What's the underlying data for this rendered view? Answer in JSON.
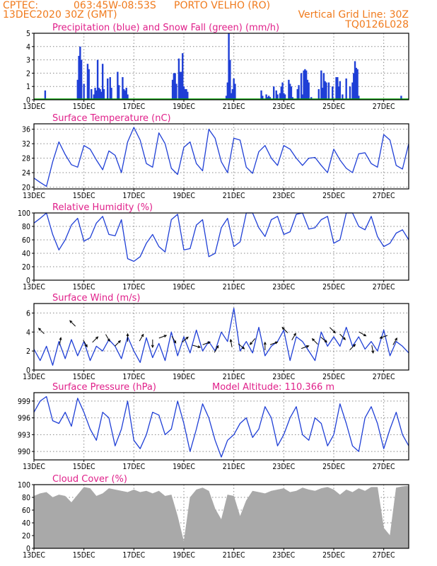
{
  "header": {
    "org": "CPTEC:",
    "coords": "063:45W-08:53S",
    "location": "PORTO VELHO (RO)",
    "datetime": "13DEC2020 30Z (GMT)",
    "grid_note": "Vertical Grid Line: 30Z",
    "model": "TQ0126L028"
  },
  "colors": {
    "header": "#f07a1c",
    "panel_title": "#e0208a",
    "line": "#1f3fd6",
    "precip": "#1f3fd6",
    "snow": "#00a000",
    "cloud": "#a9a9a9",
    "arrow": "#000000"
  },
  "x_axis": {
    "ticks": [
      "13DEC",
      "15DEC",
      "17DEC",
      "19DEC",
      "21DEC",
      "23DEC",
      "25DEC",
      "27DEC"
    ],
    "tick_days": [
      0,
      2,
      4,
      6,
      8,
      10,
      12,
      14
    ],
    "range_days": [
      0,
      15
    ]
  },
  "chart_data": [
    {
      "type": "bar",
      "title": "Precipitation (blue) and Snow Fall (green) (mm/h)",
      "ylim": [
        0,
        5
      ],
      "yticks": [
        "0",
        "1",
        "2",
        "3",
        "4",
        "5"
      ],
      "grid": true,
      "series": [
        {
          "name": "Precipitation",
          "color": "#1f3fd6",
          "points": [
            [
              0.45,
              0.7
            ],
            [
              1.75,
              1.5
            ],
            [
              1.8,
              3.3
            ],
            [
              1.85,
              4.0
            ],
            [
              1.9,
              3.0
            ],
            [
              2.0,
              1.2
            ],
            [
              2.15,
              2.7
            ],
            [
              2.2,
              2.3
            ],
            [
              2.3,
              0.8
            ],
            [
              2.4,
              0.4
            ],
            [
              2.45,
              0.9
            ],
            [
              2.5,
              0.7
            ],
            [
              2.55,
              3.0
            ],
            [
              2.6,
              0.9
            ],
            [
              2.65,
              0.8
            ],
            [
              2.7,
              0.6
            ],
            [
              2.75,
              2.7
            ],
            [
              2.8,
              0.8
            ],
            [
              2.95,
              1.6
            ],
            [
              3.05,
              1.7
            ],
            [
              3.1,
              0.9
            ],
            [
              3.35,
              2.1
            ],
            [
              3.4,
              1.1
            ],
            [
              3.55,
              1.7
            ],
            [
              3.6,
              0.8
            ],
            [
              3.65,
              0.7
            ],
            [
              3.7,
              0.9
            ],
            [
              3.75,
              0.4
            ],
            [
              5.55,
              1.5
            ],
            [
              5.6,
              2.0
            ],
            [
              5.65,
              2.0
            ],
            [
              5.7,
              1.2
            ],
            [
              5.8,
              3.1
            ],
            [
              5.85,
              2.1
            ],
            [
              5.9,
              2.1
            ],
            [
              5.95,
              3.5
            ],
            [
              6.0,
              1.0
            ],
            [
              6.05,
              0.8
            ],
            [
              6.1,
              0.8
            ],
            [
              6.15,
              0.6
            ],
            [
              7.7,
              0.3
            ],
            [
              7.75,
              1.3
            ],
            [
              7.8,
              5.0
            ],
            [
              7.85,
              3.0
            ],
            [
              7.9,
              0.5
            ],
            [
              7.95,
              0.8
            ],
            [
              8.0,
              1.6
            ],
            [
              8.05,
              1.2
            ],
            [
              9.1,
              0.7
            ],
            [
              9.15,
              0.3
            ],
            [
              9.3,
              0.4
            ],
            [
              9.35,
              0.2
            ],
            [
              9.4,
              0.3
            ],
            [
              9.45,
              0.2
            ],
            [
              9.6,
              1.0
            ],
            [
              9.7,
              0.7
            ],
            [
              9.75,
              0.4
            ],
            [
              9.85,
              0.5
            ],
            [
              9.9,
              1.0
            ],
            [
              9.95,
              1.3
            ],
            [
              10.0,
              0.5
            ],
            [
              10.05,
              0.4
            ],
            [
              10.2,
              1.5
            ],
            [
              10.25,
              1.2
            ],
            [
              10.3,
              1.0
            ],
            [
              10.35,
              0.2
            ],
            [
              10.55,
              0.8
            ],
            [
              10.6,
              1.1
            ],
            [
              10.7,
              2.0
            ],
            [
              10.75,
              0.4
            ],
            [
              10.8,
              2.2
            ],
            [
              10.85,
              2.3
            ],
            [
              10.9,
              2.2
            ],
            [
              10.95,
              1.5
            ],
            [
              11.0,
              1.3
            ],
            [
              11.1,
              0.2
            ],
            [
              11.4,
              0.8
            ],
            [
              11.5,
              2.2
            ],
            [
              11.55,
              0.9
            ],
            [
              11.6,
              2.0
            ],
            [
              11.65,
              1.4
            ],
            [
              11.7,
              1.3
            ],
            [
              11.8,
              1.3
            ],
            [
              11.95,
              1.0
            ],
            [
              12.1,
              1.7
            ],
            [
              12.15,
              1.7
            ],
            [
              12.2,
              1.0
            ],
            [
              12.25,
              1.4
            ],
            [
              12.35,
              0.4
            ],
            [
              12.5,
              1.6
            ],
            [
              12.65,
              1.0
            ],
            [
              12.75,
              1.3
            ],
            [
              12.8,
              2.0
            ],
            [
              12.85,
              2.9
            ],
            [
              12.9,
              2.4
            ],
            [
              12.95,
              2.3
            ],
            [
              13.0,
              0.3
            ],
            [
              14.7,
              0.3
            ]
          ]
        },
        {
          "name": "Snow Fall",
          "color": "#00a000",
          "points": []
        }
      ]
    },
    {
      "type": "line",
      "title": "Surface Temperature (nC)",
      "ylim": [
        19.5,
        37.5
      ],
      "yticks": [
        "20",
        "24",
        "28",
        "32",
        "36"
      ],
      "ytick_values": [
        20,
        24,
        28,
        32,
        36
      ],
      "grid": true,
      "x": [
        0,
        0.25,
        0.5,
        0.75,
        1,
        1.25,
        1.5,
        1.75,
        2,
        2.25,
        2.5,
        2.75,
        3,
        3.25,
        3.5,
        3.75,
        4,
        4.25,
        4.5,
        4.75,
        5,
        5.25,
        5.5,
        5.75,
        6,
        6.25,
        6.5,
        6.75,
        7,
        7.25,
        7.5,
        7.75,
        8,
        8.25,
        8.5,
        8.75,
        9,
        9.25,
        9.5,
        9.75,
        10,
        10.25,
        10.5,
        10.75,
        11,
        11.25,
        11.5,
        11.75,
        12,
        12.25,
        12.5,
        12.75,
        13,
        13.25,
        13.5,
        13.75,
        14,
        14.25,
        14.5,
        14.75,
        15
      ],
      "values": [
        22.5,
        21.3,
        20.2,
        27.0,
        32.5,
        29.0,
        26.2,
        25.5,
        31.5,
        30.5,
        27.5,
        24.8,
        30.0,
        28.8,
        24.0,
        32.5,
        36.5,
        33.0,
        26.5,
        25.5,
        35.0,
        32.0,
        25.2,
        23.5,
        31.0,
        32.5,
        26.5,
        24.5,
        36.0,
        33.5,
        27.0,
        24.0,
        33.5,
        33.0,
        25.5,
        23.8,
        29.8,
        31.5,
        28.0,
        26.0,
        31.5,
        30.5,
        28.0,
        26.0,
        28.0,
        28.2,
        26.0,
        24.0,
        30.5,
        27.5,
        25.2,
        24.0,
        29.2,
        29.5,
        26.5,
        25.5,
        34.5,
        33.0,
        26.0,
        25.0,
        32.0
      ]
    },
    {
      "type": "line",
      "title": "Relative Humidity (%)",
      "ylim": [
        0,
        100
      ],
      "yticks": [
        "0",
        "20",
        "40",
        "60",
        "80",
        "100"
      ],
      "ytick_values": [
        0,
        20,
        40,
        60,
        80,
        100
      ],
      "grid": true,
      "x": [
        0,
        0.25,
        0.5,
        0.75,
        1,
        1.25,
        1.5,
        1.75,
        2,
        2.25,
        2.5,
        2.75,
        3,
        3.25,
        3.5,
        3.75,
        4,
        4.25,
        4.5,
        4.75,
        5,
        5.25,
        5.5,
        5.75,
        6,
        6.25,
        6.5,
        6.75,
        7,
        7.25,
        7.5,
        7.75,
        8,
        8.25,
        8.5,
        8.75,
        9,
        9.25,
        9.5,
        9.75,
        10,
        10.25,
        10.5,
        10.75,
        11,
        11.25,
        11.5,
        11.75,
        12,
        12.25,
        12.5,
        12.75,
        13,
        13.25,
        13.5,
        13.75,
        14,
        14.25,
        14.5,
        14.75,
        15
      ],
      "values": [
        85,
        92,
        100,
        68,
        45,
        60,
        82,
        92,
        58,
        63,
        85,
        95,
        68,
        66,
        90,
        32,
        28,
        35,
        55,
        68,
        50,
        42,
        90,
        98,
        45,
        47,
        82,
        90,
        35,
        40,
        78,
        92,
        50,
        57,
        100,
        100,
        78,
        65,
        90,
        95,
        68,
        72,
        98,
        100,
        76,
        78,
        90,
        95,
        55,
        60,
        100,
        100,
        80,
        75,
        95,
        65,
        50,
        55,
        70,
        75,
        60
      ]
    },
    {
      "type": "line",
      "title": "Surface Wind (m/s)",
      "ylim": [
        0,
        7
      ],
      "yticks": [
        "0",
        "2",
        "4",
        "6"
      ],
      "ytick_values": [
        0,
        2,
        4,
        6
      ],
      "grid": true,
      "x": [
        0,
        0.25,
        0.5,
        0.75,
        1,
        1.25,
        1.5,
        1.75,
        2,
        2.25,
        2.5,
        2.75,
        3,
        3.25,
        3.5,
        3.75,
        4,
        4.25,
        4.5,
        4.75,
        5,
        5.25,
        5.5,
        5.75,
        6,
        6.25,
        6.5,
        6.75,
        7,
        7.25,
        7.5,
        7.75,
        8,
        8.25,
        8.5,
        8.75,
        9,
        9.25,
        9.5,
        9.75,
        10,
        10.25,
        10.5,
        10.75,
        11,
        11.25,
        11.5,
        11.75,
        12,
        12.25,
        12.5,
        12.75,
        13,
        13.25,
        13.5,
        13.75,
        14,
        14.25,
        14.5,
        14.75,
        15
      ],
      "values": [
        2.2,
        1.0,
        2.5,
        0.5,
        3.0,
        1.2,
        3.2,
        1.5,
        3.0,
        1.0,
        2.5,
        2.0,
        3.2,
        2.5,
        1.2,
        3.5,
        2.0,
        0.8,
        3.4,
        1.3,
        2.8,
        1.0,
        4.0,
        1.5,
        3.5,
        1.8,
        4.2,
        2.0,
        3.0,
        2.0,
        4.0,
        3.0,
        6.5,
        2.0,
        3.0,
        1.8,
        4.5,
        1.5,
        2.5,
        3.0,
        4.2,
        1.0,
        3.5,
        3.0,
        2.0,
        1.0,
        4.0,
        2.5,
        3.5,
        2.5,
        4.5,
        2.5,
        3.5,
        2.2,
        3.0,
        2.0,
        4.2,
        1.5,
        3.0,
        2.5,
        1.8
      ],
      "arrows_x": [
        0.3,
        1.05,
        1.55,
        2.05,
        2.45,
        2.95,
        3.35,
        3.75,
        4.3,
        4.75,
        5.15,
        5.6,
        6.05,
        6.5,
        6.9,
        7.3,
        7.9,
        8.3,
        8.75,
        9.25,
        9.6,
        10.05,
        10.4,
        10.85,
        11.25,
        11.6,
        11.95,
        12.35,
        12.75,
        13.15,
        13.55,
        14.0,
        14.45
      ],
      "arrows_y": [
        4.1,
        3.0,
        4.9,
        2.8,
        3.2,
        3.4,
        2.8,
        3.4,
        3.4,
        2.8,
        3.5,
        3.2,
        3.2,
        2.5,
        2.8,
        2.2,
        2.8,
        2.5,
        3.0,
        2.5,
        2.8,
        4.2,
        3.5,
        2.4,
        3.0,
        3.2,
        4.2,
        3.5,
        2.4,
        3.8,
        2.2,
        3.5,
        3.0
      ],
      "arrows_dir": [
        135,
        80,
        135,
        300,
        45,
        300,
        45,
        90,
        60,
        270,
        20,
        300,
        40,
        345,
        20,
        60,
        100,
        320,
        230,
        90,
        20,
        135,
        60,
        20,
        135,
        320,
        315,
        315,
        45,
        330,
        280,
        200,
        60
      ]
    },
    {
      "type": "line",
      "title": "Surface Pressure (hPa)",
      "annotation": "Model Altitude: 110.366 m",
      "ylim": [
        988.5,
        1000.5
      ],
      "yticks": [
        "990",
        "993",
        "996",
        "999"
      ],
      "ytick_values": [
        990,
        993,
        996,
        999
      ],
      "grid": true,
      "x": [
        0,
        0.25,
        0.5,
        0.75,
        1,
        1.25,
        1.5,
        1.75,
        2,
        2.25,
        2.5,
        2.75,
        3,
        3.25,
        3.5,
        3.75,
        4,
        4.25,
        4.5,
        4.75,
        5,
        5.25,
        5.5,
        5.75,
        6,
        6.25,
        6.5,
        6.75,
        7,
        7.25,
        7.5,
        7.75,
        8,
        8.25,
        8.5,
        8.75,
        9,
        9.25,
        9.5,
        9.75,
        10,
        10.25,
        10.5,
        10.75,
        11,
        11.25,
        11.5,
        11.75,
        12,
        12.25,
        12.5,
        12.75,
        13,
        13.25,
        13.5,
        13.75,
        14,
        14.25,
        14.5,
        14.75,
        15
      ],
      "values": [
        997,
        999.0,
        999.8,
        995.5,
        995,
        997,
        994.5,
        999.5,
        997,
        994,
        992,
        997,
        996,
        991,
        994,
        999,
        992,
        990.5,
        993,
        997,
        996.5,
        993,
        994,
        999,
        995,
        990,
        994,
        998.5,
        996,
        992,
        989,
        992,
        993,
        995,
        996,
        992.5,
        994,
        998,
        996,
        991,
        993,
        996,
        998,
        993,
        992,
        996,
        995,
        991,
        993,
        998.5,
        995,
        991,
        990,
        996,
        998,
        995,
        990.5,
        994,
        997,
        993,
        991
      ]
    },
    {
      "type": "area",
      "title": "Cloud Cover (%)",
      "ylim": [
        0,
        100
      ],
      "yticks": [
        "0",
        "20",
        "40",
        "60",
        "80",
        "100"
      ],
      "ytick_values": [
        0,
        20,
        40,
        60,
        80,
        100
      ],
      "grid": true,
      "x": [
        0,
        0.25,
        0.5,
        0.75,
        1,
        1.25,
        1.5,
        1.75,
        2,
        2.25,
        2.5,
        2.75,
        3,
        3.25,
        3.5,
        3.75,
        4,
        4.25,
        4.5,
        4.75,
        5,
        5.25,
        5.5,
        5.75,
        6,
        6.25,
        6.5,
        6.75,
        7,
        7.25,
        7.5,
        7.75,
        8,
        8.25,
        8.5,
        8.75,
        9,
        9.25,
        9.5,
        9.75,
        10,
        10.25,
        10.5,
        10.75,
        11,
        11.25,
        11.5,
        11.75,
        12,
        12.25,
        12.5,
        12.75,
        13,
        13.25,
        13.5,
        13.75,
        14,
        14.25,
        14.5,
        14.75,
        15
      ],
      "values": [
        82,
        86,
        88,
        80,
        84,
        82,
        72,
        84,
        96,
        94,
        82,
        86,
        94,
        92,
        90,
        88,
        92,
        88,
        90,
        86,
        90,
        82,
        84,
        50,
        10,
        80,
        92,
        95,
        90,
        62,
        45,
        84,
        82,
        50,
        75,
        90,
        88,
        86,
        90,
        92,
        94,
        88,
        90,
        95,
        92,
        90,
        94,
        96,
        92,
        84,
        92,
        88,
        94,
        90,
        96,
        96,
        32,
        20,
        95,
        97,
        98
      ]
    }
  ]
}
